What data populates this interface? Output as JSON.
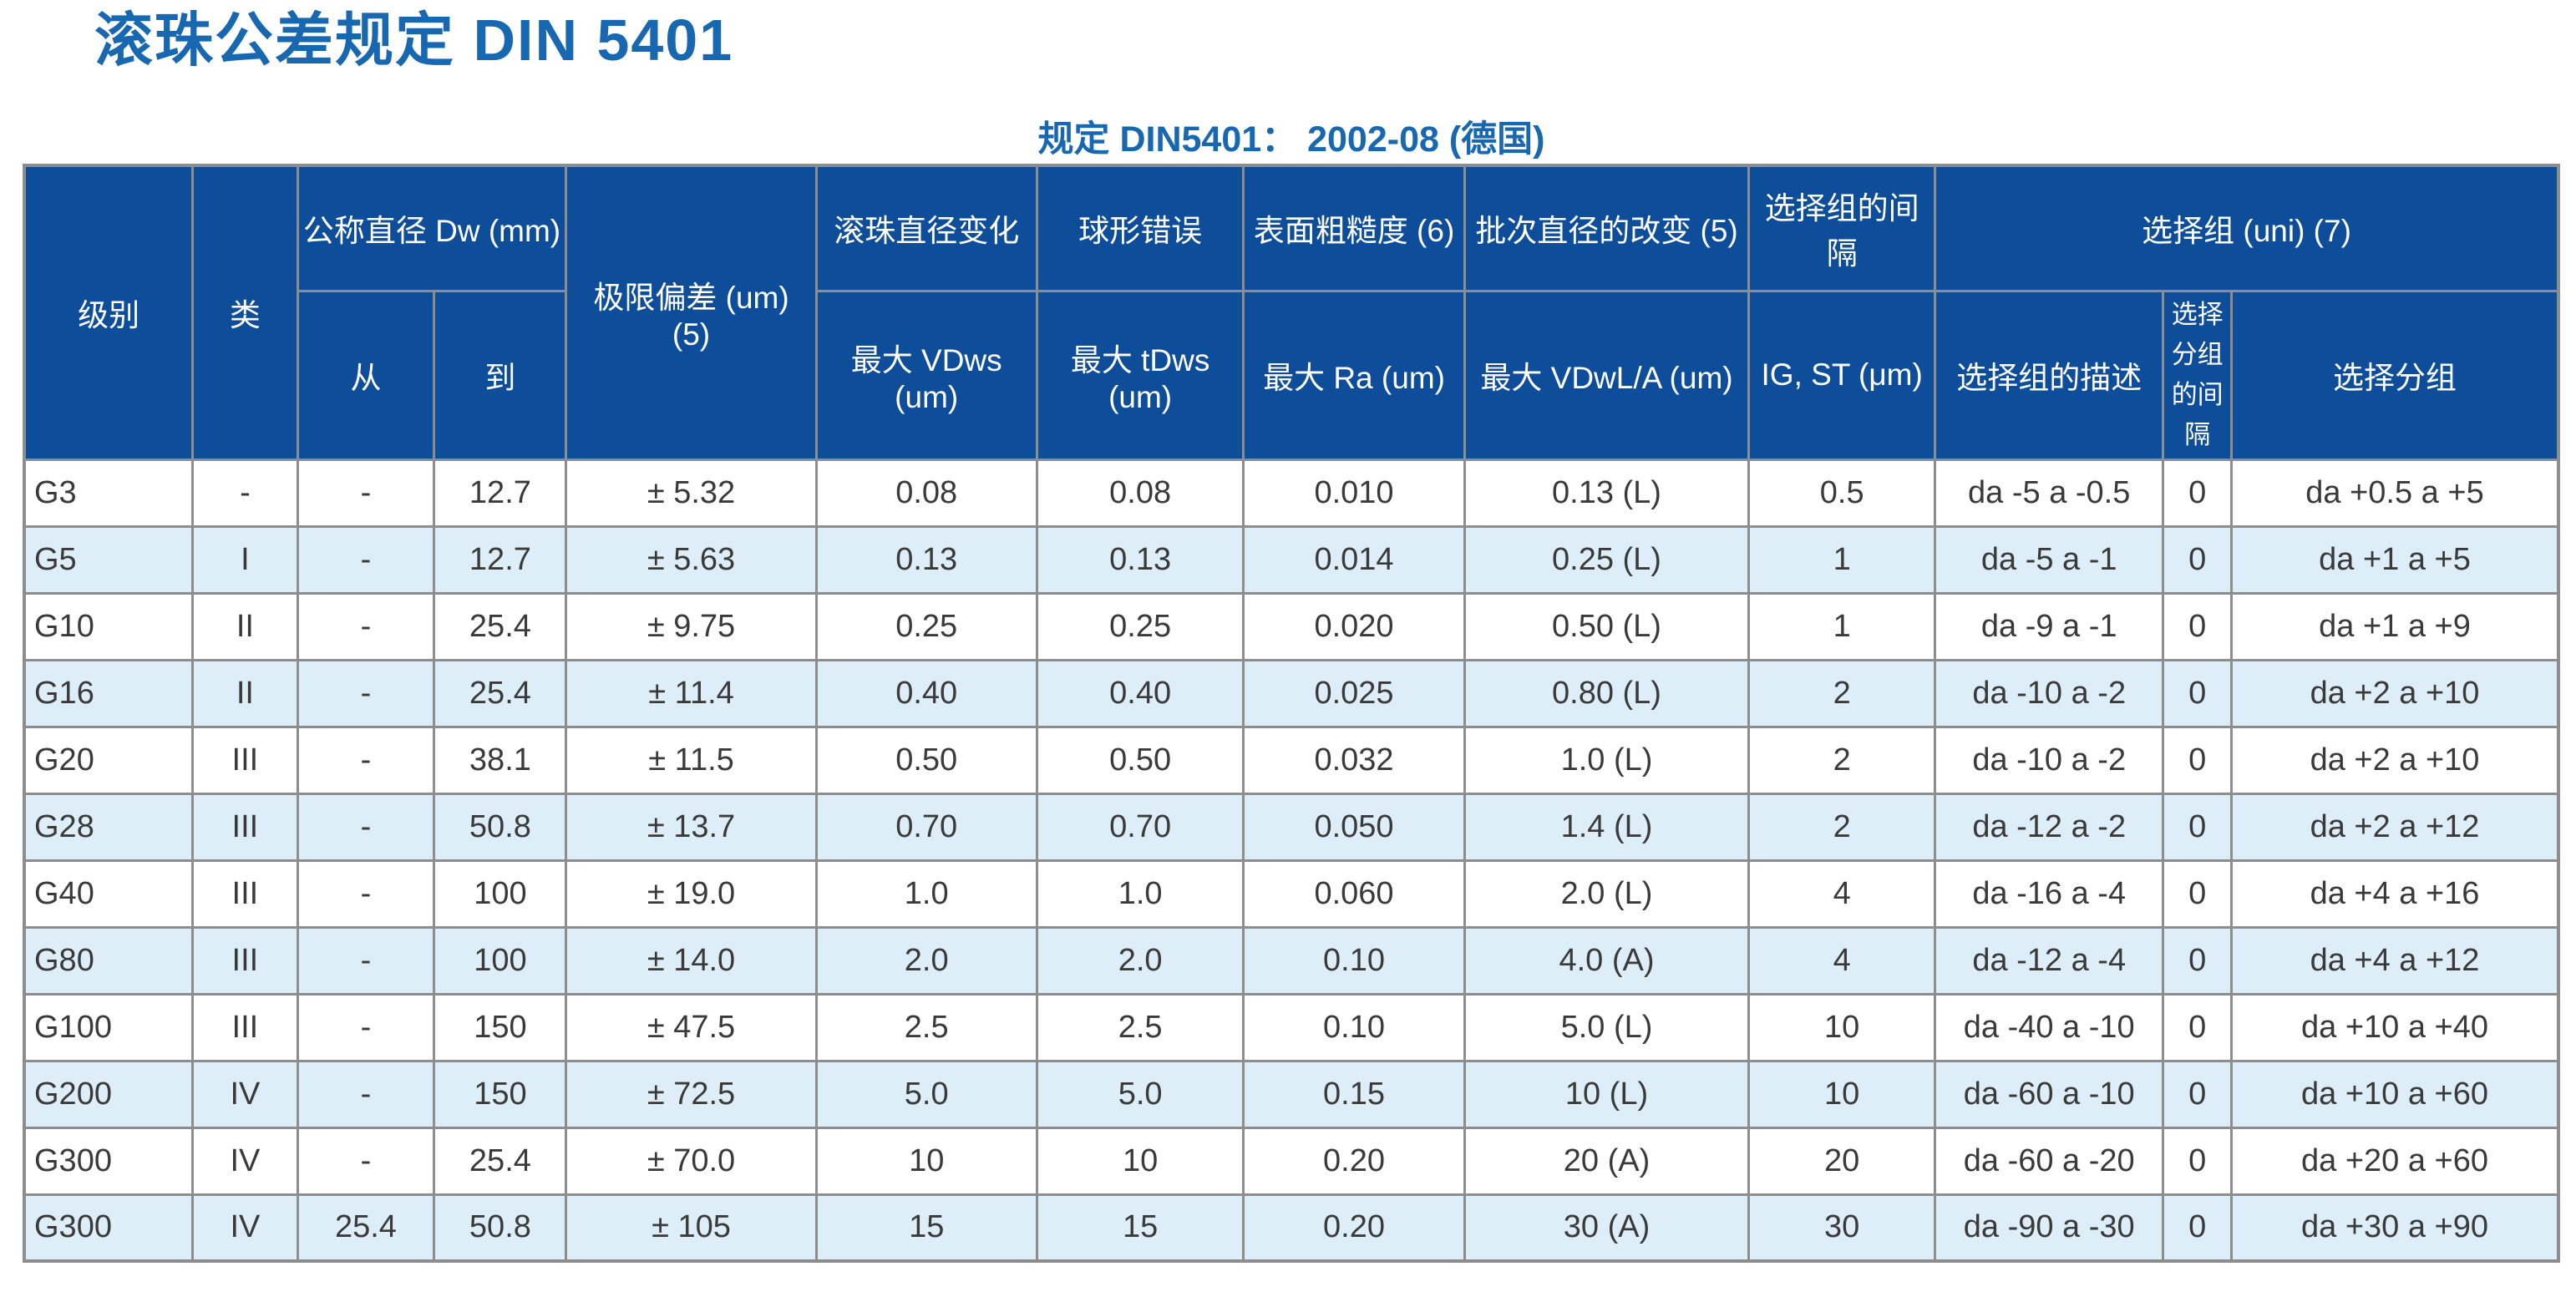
{
  "page": {
    "title": "滚珠公差规定 DIN 5401",
    "subtitle": "规定 DIN5401： 2002-08 (德国)"
  },
  "colors": {
    "accent_blue": "#1767b1",
    "header_bg": "#0d4d9a",
    "stripe_row": "#ddeef8",
    "border_gray": "#8d8d8d",
    "text_dark": "#3a3a3a"
  },
  "table": {
    "header": {
      "level": "级别",
      "class": "类",
      "nominal_diameter": "公称直径 Dw (mm)",
      "from": "从",
      "to": "到",
      "limit_deviation": "极限偏差 (um) (5)",
      "ball_diameter_variation": "滚珠直径变化",
      "max_vdws": "最大 VDws (um)",
      "spherical_error": "球形错误",
      "max_tdws": "最大 tDws (um)",
      "surface_roughness": "表面粗糙度 (6)",
      "max_ra": "最大 Ra (um)",
      "lot_diameter_variation": "批次直径的改变 (5)",
      "max_vdwl_a": "最大 VDwL/A (um)",
      "selection_group_interval": "选择组的间隔",
      "ig_st": "IG, ST (μm)",
      "selection_group": "选择组 (uni) (7)",
      "selection_group_desc": "选择组的描述",
      "selection_subgroup_interval": "选择分组的间隔",
      "selection_subgroup": "选择分组"
    },
    "rows": [
      [
        "G3",
        "-",
        "-",
        "12.7",
        "± 5.32",
        "0.08",
        "0.08",
        "0.010",
        "0.13 (L)",
        "0.5",
        "da -5 a -0.5",
        "0",
        "da +0.5 a +5"
      ],
      [
        "G5",
        "I",
        "-",
        "12.7",
        "± 5.63",
        "0.13",
        "0.13",
        "0.014",
        "0.25 (L)",
        "1",
        "da -5 a -1",
        "0",
        "da +1 a +5"
      ],
      [
        "G10",
        "II",
        "-",
        "25.4",
        "± 9.75",
        "0.25",
        "0.25",
        "0.020",
        "0.50 (L)",
        "1",
        "da -9 a -1",
        "0",
        "da +1 a +9"
      ],
      [
        "G16",
        "II",
        "-",
        "25.4",
        "± 11.4",
        "0.40",
        "0.40",
        "0.025",
        "0.80 (L)",
        "2",
        "da -10 a -2",
        "0",
        "da +2 a +10"
      ],
      [
        "G20",
        "III",
        "-",
        "38.1",
        "± 11.5",
        "0.50",
        "0.50",
        "0.032",
        "1.0 (L)",
        "2",
        "da -10 a -2",
        "0",
        "da +2 a +10"
      ],
      [
        "G28",
        "III",
        "-",
        "50.8",
        "± 13.7",
        "0.70",
        "0.70",
        "0.050",
        "1.4 (L)",
        "2",
        "da -12 a -2",
        "0",
        "da +2 a +12"
      ],
      [
        "G40",
        "III",
        "-",
        "100",
        "± 19.0",
        "1.0",
        "1.0",
        "0.060",
        "2.0 (L)",
        "4",
        "da -16 a -4",
        "0",
        "da +4 a +16"
      ],
      [
        "G80",
        "III",
        "-",
        "100",
        "± 14.0",
        "2.0",
        "2.0",
        "0.10",
        "4.0 (A)",
        "4",
        "da -12 a -4",
        "0",
        "da +4 a +12"
      ],
      [
        "G100",
        "III",
        "-",
        "150",
        "± 47.5",
        "2.5",
        "2.5",
        "0.10",
        "5.0 (L)",
        "10",
        "da -40 a -10",
        "0",
        "da +10 a +40"
      ],
      [
        "G200",
        "IV",
        "-",
        "150",
        "± 72.5",
        "5.0",
        "5.0",
        "0.15",
        "10 (L)",
        "10",
        "da -60 a -10",
        "0",
        "da +10 a +60"
      ],
      [
        "G300",
        "IV",
        "-",
        "25.4",
        "± 70.0",
        "10",
        "10",
        "0.20",
        "20 (A)",
        "20",
        "da -60 a -20",
        "0",
        "da +20 a +60"
      ],
      [
        "G300",
        "IV",
        "25.4",
        "50.8",
        "± 105",
        "15",
        "15",
        "0.20",
        "30 (A)",
        "30",
        "da -90 a -30",
        "0",
        "da +30 a +90"
      ]
    ]
  }
}
